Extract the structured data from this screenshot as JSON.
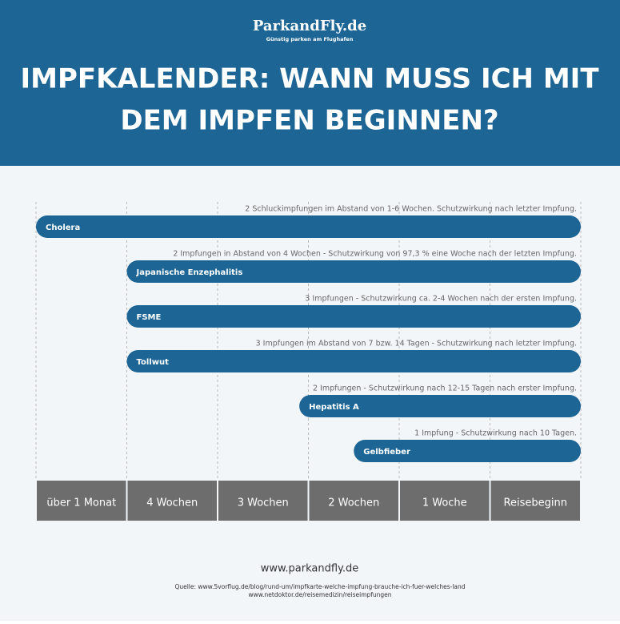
{
  "header": {
    "logo": "ParkandFly.de",
    "logo_tagline": "Günstig parken am Flughafen",
    "title_lines": [
      "IMPFKALENDER: WANN MUSS ICH MIT",
      "DEM IMPFEN BEGINNEN?"
    ]
  },
  "chart_data": {
    "type": "timeline",
    "categories": [
      "über 1 Monat",
      "4 Wochen",
      "3 Wochen",
      "2 Wochen",
      "1 Woche",
      "Reisebeginn"
    ],
    "color": "#1c6595",
    "category_color": "#6e6d6d",
    "items": [
      {
        "name": "Cholera",
        "note": "2 Schluckimpfungen im Abstand von 1-6 Wochen. Schutzwirkung nach letzter Impfung.",
        "start": 0
      },
      {
        "name": "Japanische Enzephalitis",
        "note": "2 Impfungen in Abstand von 4 Wochen - Schutzwirkung von 97,3 % eine Woche nach der letzten Impfung.",
        "start": 1
      },
      {
        "name": "FSME",
        "note": "3 Impfungen - Schutzwirkung ca. 2-4 Wochen nach der ersten Impfung.",
        "start": 1
      },
      {
        "name": "Tollwut",
        "note": "3 Impfungen im Abstand von 7 bzw. 14 Tagen - Schutzwirkung nach letzter Impfung.",
        "start": 1
      },
      {
        "name": "Hepatitis A",
        "note": "2 Impfungen - Schutzwirkung nach 12-15 Tagen nach erster Impfung.",
        "start": 2.9
      },
      {
        "name": "Gelbfieber",
        "note": "1 Impfung - Schutzwirkung nach 10 Tagen.",
        "start": 3.5
      }
    ]
  },
  "footer": {
    "website": "www.parkandfly.de",
    "sources": [
      "Quelle: www.5vorflug.de/blog/rund-um/impfkarte-welche-impfung-brauche-ich-fuer-welches-land",
      "www.netdoktor.de/reisemedizin/reiseimpfungen"
    ]
  }
}
